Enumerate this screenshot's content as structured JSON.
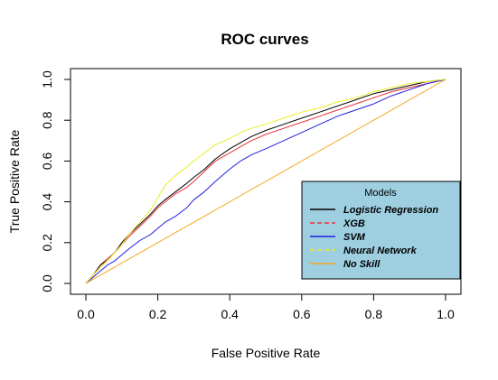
{
  "chart_data": {
    "type": "line",
    "title": "ROC curves",
    "xlabel": "False Positive Rate",
    "ylabel": "True Positive Rate",
    "xlim": [
      0,
      1
    ],
    "ylim": [
      0,
      1
    ],
    "x_ticks": [
      "0.0",
      "0.2",
      "0.4",
      "0.6",
      "0.8",
      "1.0"
    ],
    "y_ticks": [
      "0.0",
      "0.2",
      "0.4",
      "0.6",
      "0.8",
      "1.0"
    ],
    "grid": false,
    "legend": {
      "title": "Models",
      "position": "bottom-right",
      "background": "#9ecfe0"
    },
    "series": [
      {
        "name": "Logistic Regression",
        "color": "#000000",
        "dash": "solid",
        "x": [
          0,
          0.02,
          0.04,
          0.06,
          0.08,
          0.1,
          0.12,
          0.15,
          0.18,
          0.2,
          0.22,
          0.25,
          0.28,
          0.3,
          0.33,
          0.36,
          0.4,
          0.43,
          0.46,
          0.5,
          0.55,
          0.6,
          0.65,
          0.7,
          0.75,
          0.8,
          0.85,
          0.9,
          0.95,
          1.0
        ],
        "y": [
          0,
          0.04,
          0.09,
          0.12,
          0.15,
          0.2,
          0.24,
          0.29,
          0.34,
          0.38,
          0.41,
          0.45,
          0.49,
          0.52,
          0.56,
          0.61,
          0.66,
          0.69,
          0.72,
          0.75,
          0.78,
          0.81,
          0.84,
          0.87,
          0.9,
          0.93,
          0.95,
          0.97,
          0.99,
          1.0
        ]
      },
      {
        "name": "XGB",
        "color": "#e8303a",
        "dash": "dashed",
        "x": [
          0,
          0.02,
          0.04,
          0.06,
          0.08,
          0.1,
          0.12,
          0.15,
          0.18,
          0.2,
          0.22,
          0.25,
          0.28,
          0.3,
          0.33,
          0.36,
          0.4,
          0.43,
          0.46,
          0.5,
          0.55,
          0.6,
          0.65,
          0.7,
          0.75,
          0.8,
          0.85,
          0.9,
          0.95,
          1.0
        ],
        "y": [
          0,
          0.04,
          0.08,
          0.12,
          0.15,
          0.19,
          0.23,
          0.28,
          0.33,
          0.37,
          0.4,
          0.44,
          0.47,
          0.5,
          0.55,
          0.6,
          0.64,
          0.67,
          0.7,
          0.73,
          0.76,
          0.79,
          0.82,
          0.85,
          0.88,
          0.91,
          0.94,
          0.96,
          0.98,
          1.0
        ]
      },
      {
        "name": "SVM",
        "color": "#1f1fe0",
        "dash": "solid",
        "x": [
          0,
          0.02,
          0.04,
          0.06,
          0.08,
          0.1,
          0.12,
          0.15,
          0.18,
          0.2,
          0.22,
          0.25,
          0.28,
          0.3,
          0.33,
          0.36,
          0.4,
          0.43,
          0.46,
          0.5,
          0.55,
          0.6,
          0.65,
          0.7,
          0.75,
          0.8,
          0.85,
          0.9,
          0.95,
          1.0
        ],
        "y": [
          0,
          0.03,
          0.06,
          0.09,
          0.11,
          0.14,
          0.17,
          0.21,
          0.24,
          0.27,
          0.3,
          0.33,
          0.37,
          0.41,
          0.45,
          0.5,
          0.56,
          0.6,
          0.63,
          0.66,
          0.7,
          0.74,
          0.78,
          0.82,
          0.85,
          0.88,
          0.92,
          0.95,
          0.98,
          1.0
        ]
      },
      {
        "name": "Neural Network",
        "color": "#ecec2a",
        "dash": "dashed",
        "x": [
          0,
          0.02,
          0.04,
          0.06,
          0.08,
          0.1,
          0.12,
          0.15,
          0.18,
          0.2,
          0.22,
          0.25,
          0.28,
          0.3,
          0.33,
          0.36,
          0.4,
          0.43,
          0.46,
          0.5,
          0.55,
          0.6,
          0.65,
          0.7,
          0.75,
          0.8,
          0.85,
          0.9,
          0.95,
          1.0
        ],
        "y": [
          0,
          0.04,
          0.08,
          0.11,
          0.15,
          0.19,
          0.24,
          0.3,
          0.36,
          0.42,
          0.48,
          0.53,
          0.57,
          0.6,
          0.64,
          0.68,
          0.71,
          0.74,
          0.76,
          0.78,
          0.81,
          0.84,
          0.86,
          0.89,
          0.91,
          0.94,
          0.96,
          0.98,
          0.99,
          1.0
        ]
      },
      {
        "name": "No Skill",
        "color": "#f5a623",
        "dash": "solid",
        "x": [
          0,
          1
        ],
        "y": [
          0,
          1
        ]
      }
    ]
  }
}
